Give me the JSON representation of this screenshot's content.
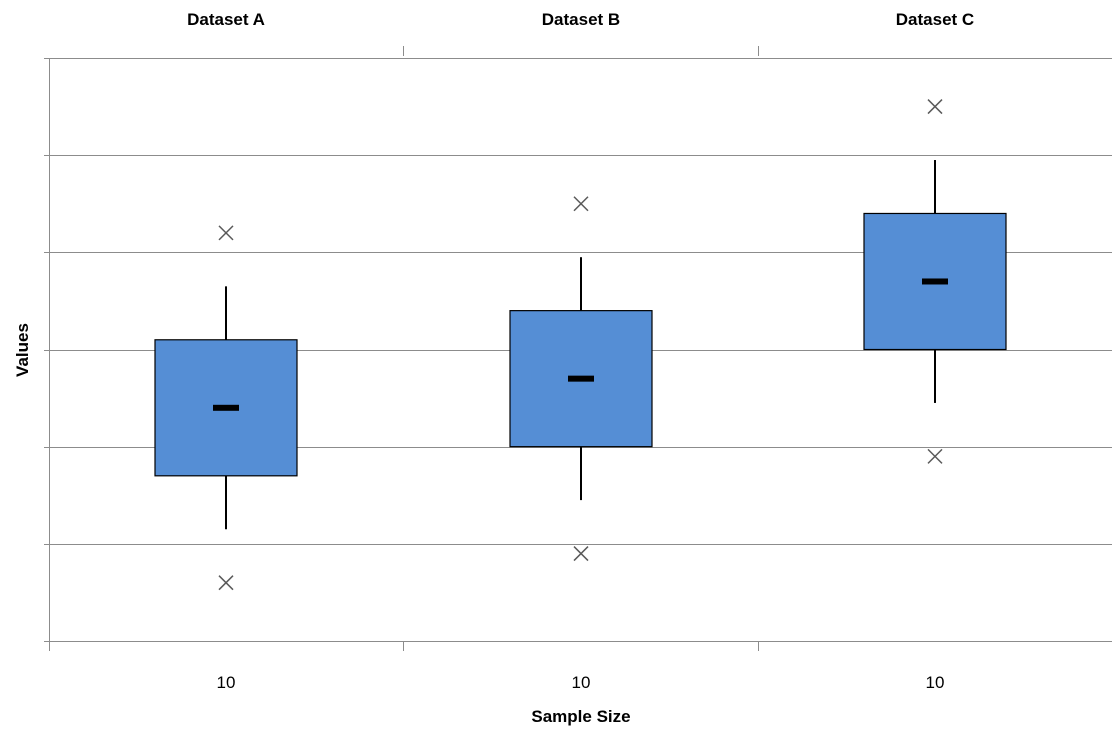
{
  "chart_data": {
    "type": "box",
    "xlabel": "Sample Size",
    "ylabel": "Values",
    "ylim": [
      0,
      6
    ],
    "y_tick_labels_shown": false,
    "grid": "horizontal",
    "box_color": "#558ED5",
    "categories": [
      "Dataset A",
      "Dataset B",
      "Dataset C"
    ],
    "sample_sizes": [
      "10",
      "10",
      "10"
    ],
    "series": [
      {
        "category": "Dataset A",
        "min": 0.6,
        "whisker_low": 1.15,
        "q1": 1.7,
        "median": 2.4,
        "q3": 3.1,
        "whisker_high": 3.65,
        "max": 4.2
      },
      {
        "category": "Dataset B",
        "min": 0.9,
        "whisker_low": 1.45,
        "q1": 2.0,
        "median": 2.7,
        "q3": 3.4,
        "whisker_high": 3.95,
        "max": 4.5
      },
      {
        "category": "Dataset C",
        "min": 1.9,
        "whisker_low": 2.45,
        "q1": 3.0,
        "median": 3.7,
        "q3": 4.4,
        "whisker_high": 4.95,
        "max": 5.5
      }
    ]
  }
}
